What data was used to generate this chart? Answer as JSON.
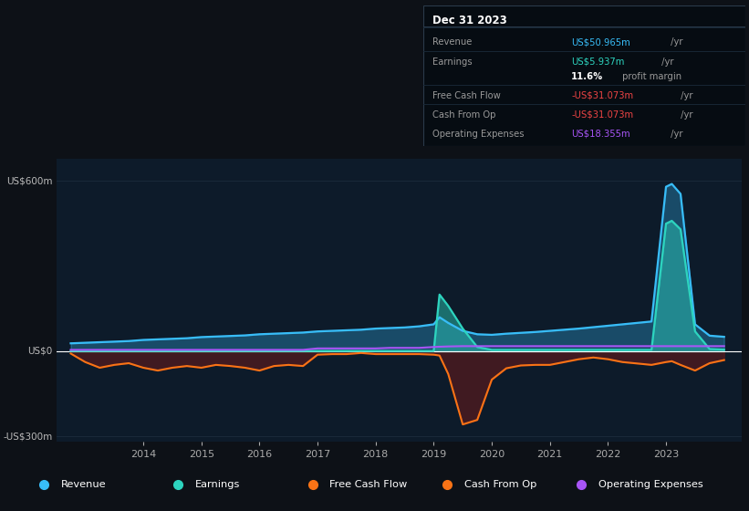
{
  "bg_color": "#0d1117",
  "chart_bg": "#0d1b2a",
  "grid_color": "#1a2a3a",
  "title_date": "Dec 31 2023",
  "ylim": [
    -320,
    680
  ],
  "xlabel_years": [
    2014,
    2015,
    2016,
    2017,
    2018,
    2019,
    2020,
    2021,
    2022,
    2023
  ],
  "revenue_color": "#38bdf8",
  "earnings_color": "#2dd4bf",
  "fcf_color": "#f97316",
  "opex_color": "#a855f7",
  "legend": [
    {
      "label": "Revenue",
      "color": "#38bdf8"
    },
    {
      "label": "Earnings",
      "color": "#2dd4bf"
    },
    {
      "label": "Free Cash Flow",
      "color": "#f97316"
    },
    {
      "label": "Cash From Op",
      "color": "#f97316"
    },
    {
      "label": "Operating Expenses",
      "color": "#a855f7"
    }
  ],
  "time": [
    2012.75,
    2013.0,
    2013.25,
    2013.5,
    2013.75,
    2014.0,
    2014.25,
    2014.5,
    2014.75,
    2015.0,
    2015.25,
    2015.5,
    2015.75,
    2016.0,
    2016.25,
    2016.5,
    2016.75,
    2017.0,
    2017.25,
    2017.5,
    2017.75,
    2018.0,
    2018.25,
    2018.5,
    2018.75,
    2019.0,
    2019.1,
    2019.25,
    2019.5,
    2019.75,
    2020.0,
    2020.25,
    2020.5,
    2020.75,
    2021.0,
    2021.25,
    2021.5,
    2021.75,
    2022.0,
    2022.25,
    2022.5,
    2022.75,
    2023.0,
    2023.1,
    2023.25,
    2023.5,
    2023.75,
    2024.0
  ],
  "revenue": [
    28,
    30,
    32,
    34,
    36,
    40,
    42,
    44,
    46,
    50,
    52,
    54,
    56,
    60,
    62,
    64,
    66,
    70,
    72,
    74,
    76,
    80,
    82,
    84,
    88,
    95,
    120,
    100,
    72,
    60,
    58,
    62,
    65,
    68,
    72,
    76,
    80,
    85,
    90,
    95,
    100,
    105,
    580,
    590,
    555,
    95,
    55,
    51
  ],
  "earnings": [
    1,
    1,
    1,
    1,
    1,
    1,
    1,
    1,
    1,
    1,
    1,
    1,
    1,
    1,
    1,
    1,
    1,
    1,
    1,
    1,
    1,
    1,
    1,
    1,
    1,
    1,
    200,
    160,
    80,
    15,
    5,
    5,
    5,
    5,
    5,
    5,
    5,
    5,
    5,
    5,
    5,
    5,
    450,
    460,
    430,
    70,
    8,
    6
  ],
  "fcf": [
    -8,
    -38,
    -58,
    -48,
    -42,
    -58,
    -68,
    -58,
    -52,
    -58,
    -48,
    -52,
    -58,
    -68,
    -52,
    -48,
    -52,
    -12,
    -10,
    -10,
    -6,
    -10,
    -10,
    -10,
    -10,
    -12,
    -15,
    -80,
    -258,
    -242,
    -100,
    -60,
    -50,
    -48,
    -48,
    -38,
    -28,
    -22,
    -28,
    -38,
    -43,
    -48,
    -38,
    -35,
    -48,
    -68,
    -42,
    -31
  ],
  "opex": [
    5,
    5,
    5,
    5,
    5,
    5,
    5,
    5,
    5,
    5,
    5,
    5,
    5,
    5,
    5,
    5,
    5,
    10,
    10,
    10,
    10,
    10,
    12,
    12,
    12,
    15,
    16,
    17,
    18,
    18,
    18,
    18,
    18,
    18,
    18,
    18,
    18,
    18,
    18,
    18,
    18,
    18,
    18,
    18,
    18,
    18,
    18,
    18
  ],
  "info_rows": [
    {
      "label": "Revenue",
      "value": "US$50.965m",
      "value_color": "#38bdf8",
      "suffix": " /yr"
    },
    {
      "label": "Earnings",
      "value": "US$5.937m",
      "value_color": "#2dd4bf",
      "suffix": " /yr"
    },
    {
      "label": "",
      "value": "11.6%",
      "value_color": "#ffffff",
      "suffix": " profit margin",
      "bold": true
    },
    {
      "label": "Free Cash Flow",
      "value": "-US$31.073m",
      "value_color": "#ef4444",
      "suffix": " /yr"
    },
    {
      "label": "Cash From Op",
      "value": "-US$31.073m",
      "value_color": "#ef4444",
      "suffix": " /yr"
    },
    {
      "label": "Operating Expenses",
      "value": "US$18.355m",
      "value_color": "#a855f7",
      "suffix": " /yr"
    }
  ]
}
